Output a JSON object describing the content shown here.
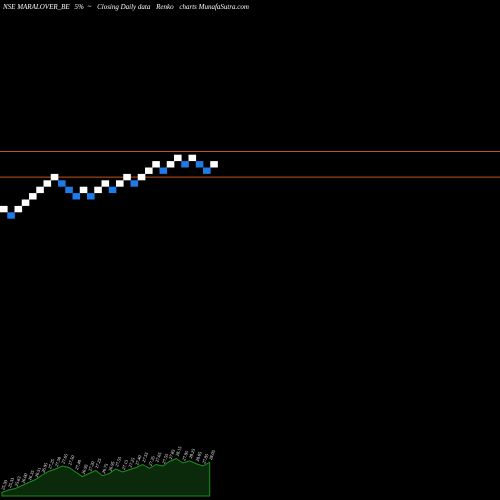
{
  "header": {
    "symbol": "NSE MARALOVER_BE",
    "change": "5%",
    "arrow": "~",
    "description": "Closing Daily data",
    "chart_kind": "Renko",
    "brand": "charts MunafaSutra.com"
  },
  "colors": {
    "background": "#000000",
    "up_brick": "#ffffff",
    "down_brick": "#1e7be8",
    "level_line": "#c0571a",
    "volume_fill": "#0b2a0b",
    "volume_line": "#1d8f1d"
  },
  "chart_data": {
    "type": "renko",
    "title": "NSE MARALOVER_BE 5% ~ Closing Daily data Renko charts MunafaSutra.com",
    "bricks": [
      {
        "dir": "up",
        "level": 26.2
      },
      {
        "dir": "down",
        "level": 26.0
      },
      {
        "dir": "up",
        "level": 26.2
      },
      {
        "dir": "up",
        "level": 26.4
      },
      {
        "dir": "up",
        "level": 26.6
      },
      {
        "dir": "up",
        "level": 26.8
      },
      {
        "dir": "up",
        "level": 27.0
      },
      {
        "dir": "up",
        "level": 27.2
      },
      {
        "dir": "down",
        "level": 27.0
      },
      {
        "dir": "down",
        "level": 26.8
      },
      {
        "dir": "down",
        "level": 26.6
      },
      {
        "dir": "up",
        "level": 26.8
      },
      {
        "dir": "down",
        "level": 26.6
      },
      {
        "dir": "up",
        "level": 26.8
      },
      {
        "dir": "up",
        "level": 27.0
      },
      {
        "dir": "down",
        "level": 26.8
      },
      {
        "dir": "up",
        "level": 27.0
      },
      {
        "dir": "up",
        "level": 27.2
      },
      {
        "dir": "down",
        "level": 27.0
      },
      {
        "dir": "up",
        "level": 27.2
      },
      {
        "dir": "up",
        "level": 27.4
      },
      {
        "dir": "up",
        "level": 27.6
      },
      {
        "dir": "down",
        "level": 27.4
      },
      {
        "dir": "up",
        "level": 27.6
      },
      {
        "dir": "up",
        "level": 27.8
      },
      {
        "dir": "down",
        "level": 27.6
      },
      {
        "dir": "up",
        "level": 27.8
      },
      {
        "dir": "down",
        "level": 27.6
      },
      {
        "dir": "down",
        "level": 27.4
      },
      {
        "dir": "up",
        "level": 27.6
      }
    ],
    "levels": [
      28.0,
      27.2
    ],
    "volume_labels": [
      "25.30",
      "25.33",
      "25.63",
      "26.00",
      "26.35",
      "26.51",
      "26.95",
      "27.25",
      "27.50",
      "27.65",
      "27.50",
      "27.40",
      "26.95",
      "27.20",
      "27.25",
      "26.75",
      "26.95",
      "27.55",
      "27.15",
      "27.25",
      "27.40",
      "27.55",
      "27.35",
      "27.65",
      "27.55",
      "27.85",
      "28.15",
      "27.95",
      "28.25",
      "28.05",
      "27.85",
      "28.05"
    ],
    "volume_profile": [
      0.05,
      0.08,
      0.1,
      0.14,
      0.18,
      0.22,
      0.28,
      0.33,
      0.36,
      0.4,
      0.38,
      0.32,
      0.26,
      0.3,
      0.34,
      0.27,
      0.3,
      0.36,
      0.32,
      0.35,
      0.38,
      0.42,
      0.37,
      0.42,
      0.4,
      0.46,
      0.5,
      0.44,
      0.47,
      0.43,
      0.4,
      0.45
    ]
  }
}
